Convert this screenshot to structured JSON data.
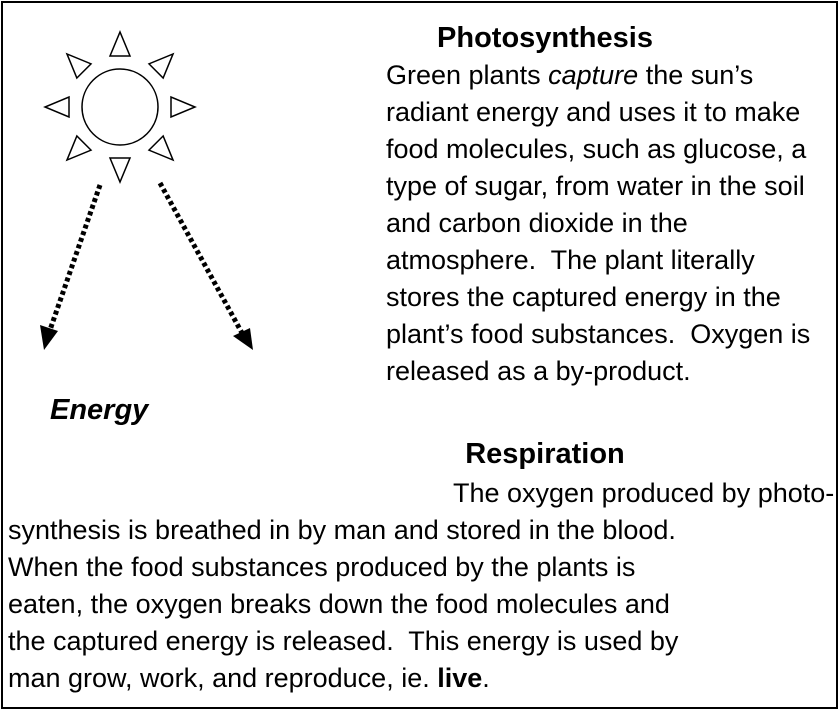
{
  "energy_label": "Energy",
  "photosynthesis": {
    "title": "Photosynthesis",
    "first_line": {
      "before": "Green plants",
      "emphasis": "capture",
      "after": "the sun’s"
    },
    "lines": [
      "radiant energy and uses it to make",
      "food molecules, such as glucose, a",
      "type of sugar, from water in the soil",
      "and carbon dioxide in the",
      "atmosphere.  The plant literally",
      "stores the captured energy in the",
      "plant’s food substances.  Oxygen is",
      "released as a by-product."
    ]
  },
  "respiration": {
    "title": "Respiration",
    "lines": [
      "The oxygen produced by photo-",
      "synthesis is breathed in by man and stored in the blood.",
      "When the food substances produced by the plants is",
      "eaten, the oxygen breaks down the food molecules and",
      "the captured energy is released.  This energy is used by"
    ],
    "last_line": {
      "before": "man grow, work, and reproduce, ie.",
      "emphasis": "live",
      "after": "."
    }
  }
}
